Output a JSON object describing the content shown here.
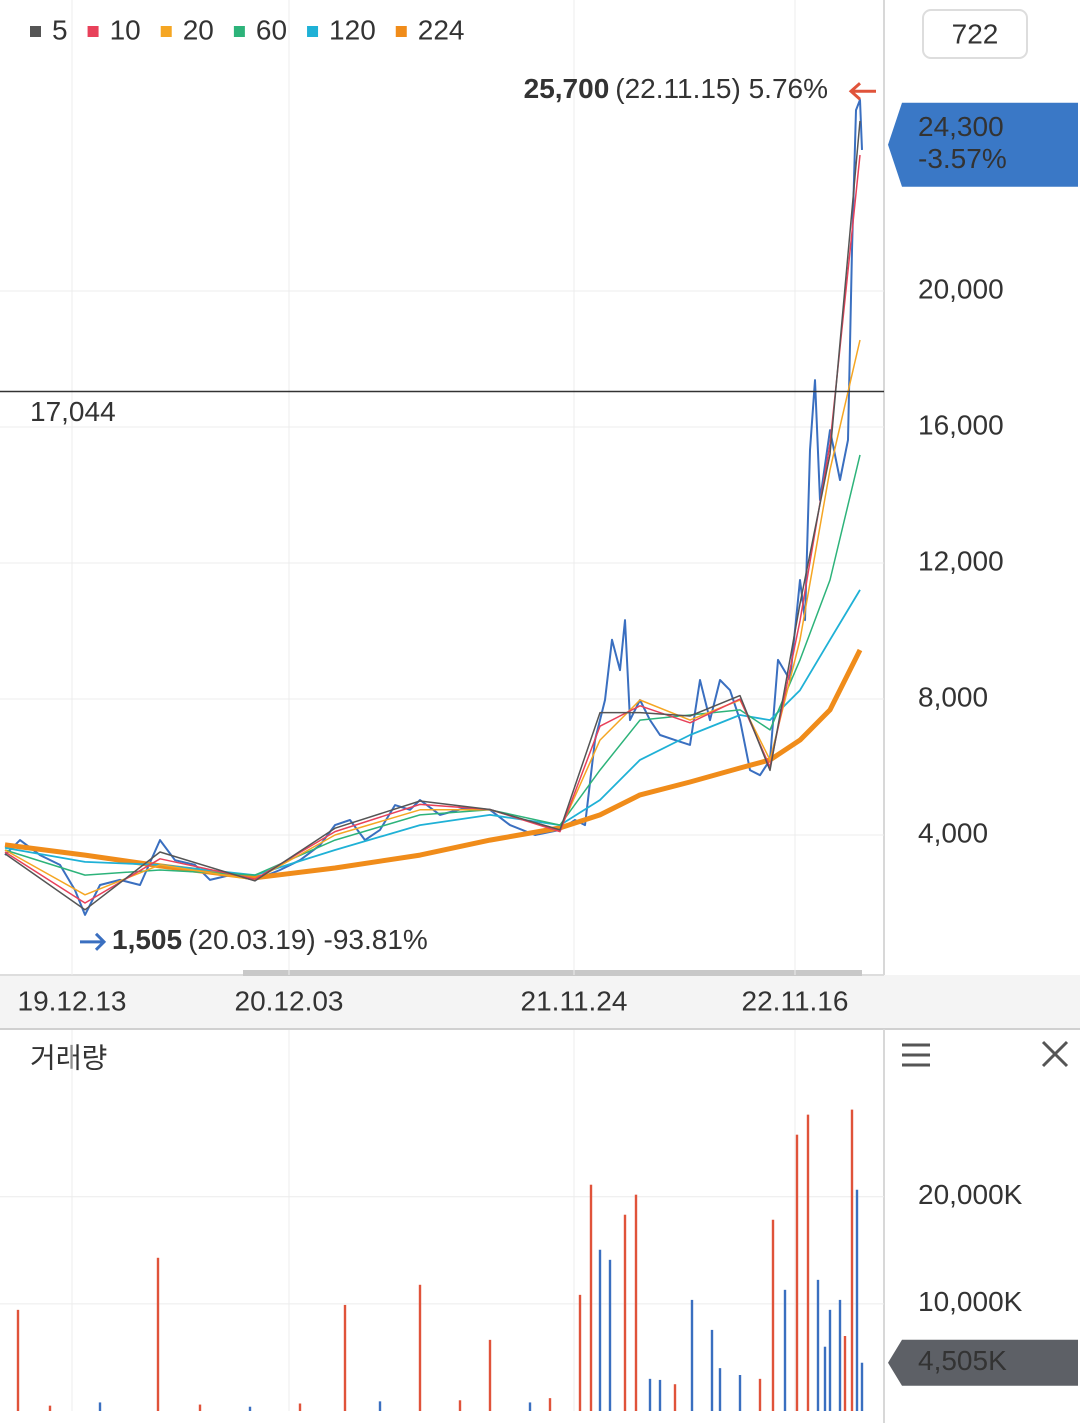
{
  "chart_data": [
    {
      "type": "line",
      "period": "722",
      "xlim": [
        0,
        884
      ],
      "xticks": [
        {
          "value": 72,
          "label": "19.12.13"
        },
        {
          "value": 289,
          "label": "20.12.03"
        },
        {
          "value": 574,
          "label": "21.11.24"
        },
        {
          "value": 795,
          "label": "22.11.16"
        }
      ],
      "ylim": [
        0,
        28500
      ],
      "yticks": [
        {
          "value": 4000,
          "label": "4,000"
        },
        {
          "value": 8000,
          "label": "8,000"
        },
        {
          "value": 12000,
          "label": "12,000"
        },
        {
          "value": 16000,
          "label": "16,000"
        },
        {
          "value": 20000,
          "label": "20,000"
        }
      ],
      "grid": true,
      "price": {
        "color": "#3a6fc0",
        "x": [
          5,
          20,
          40,
          60,
          75,
          85,
          100,
          120,
          140,
          160,
          175,
          195,
          210,
          230,
          255,
          280,
          300,
          320,
          335,
          350,
          365,
          380,
          395,
          410,
          420,
          440,
          465,
          490,
          510,
          535,
          560,
          575,
          585,
          595,
          605,
          612,
          620,
          625,
          630,
          640,
          650,
          660,
          675,
          690,
          700,
          710,
          720,
          730,
          740,
          750,
          760,
          770,
          778,
          790,
          800,
          805,
          810,
          815,
          820,
          830,
          840,
          848,
          852,
          856,
          860,
          862
        ],
        "values": [
          3410,
          3850,
          3410,
          3120,
          2380,
          1650,
          2530,
          2680,
          2530,
          3850,
          3260,
          3120,
          2680,
          2820,
          2680,
          2970,
          3260,
          3700,
          4290,
          4440,
          3850,
          4150,
          4880,
          4740,
          5030,
          4590,
          4790,
          4740,
          4290,
          4000,
          4150,
          4440,
          4290,
          6790,
          7970,
          9740,
          8850,
          10320,
          7380,
          7970,
          7380,
          6940,
          6790,
          6650,
          8560,
          7380,
          8560,
          8260,
          7380,
          5910,
          5760,
          6210,
          9150,
          8560,
          11500,
          10320,
          15320,
          17380,
          13850,
          15910,
          14440,
          15620,
          21210,
          25320,
          25620,
          24150
        ]
      },
      "x": [
        5,
        85,
        160,
        255,
        335,
        420,
        490,
        560,
        600,
        640,
        690,
        740,
        770,
        800,
        830,
        860
      ],
      "series": [
        {
          "name": "5",
          "color": "#555555",
          "values": [
            3450,
            1800,
            3500,
            2650,
            4200,
            5000,
            4750,
            4150,
            7600,
            7600,
            7500,
            8100,
            5900,
            10800,
            15200,
            25000
          ]
        },
        {
          "name": "10",
          "color": "#e8415a",
          "values": [
            3500,
            2000,
            3300,
            2700,
            4100,
            4900,
            4750,
            4100,
            7200,
            7800,
            7300,
            8000,
            6000,
            10300,
            15500,
            24000
          ]
        },
        {
          "name": "20",
          "color": "#f5a623",
          "values": [
            3560,
            2240,
            3120,
            2680,
            4000,
            4740,
            4740,
            4150,
            6790,
            7970,
            7380,
            7970,
            6210,
            9740,
            14740,
            18560
          ]
        },
        {
          "name": "60",
          "color": "#2db37a",
          "values": [
            3560,
            2820,
            2970,
            2820,
            3850,
            4590,
            4740,
            4290,
            5910,
            7380,
            7530,
            7680,
            7090,
            9150,
            11500,
            15180
          ]
        },
        {
          "name": "120",
          "color": "#1fb1d6",
          "values": [
            3620,
            3210,
            3120,
            2820,
            3560,
            4290,
            4590,
            4290,
            5030,
            6210,
            6940,
            7530,
            7380,
            8260,
            9740,
            11210
          ]
        },
        {
          "name": "224",
          "color": "#f08c1a",
          "values": [
            3710,
            3410,
            3090,
            2740,
            3030,
            3410,
            3850,
            4210,
            4590,
            5180,
            5560,
            5970,
            6210,
            6790,
            7680,
            9440
          ]
        }
      ],
      "high": {
        "value": 25700,
        "label": "25,700",
        "detail": "(22.11.15) 5.76%",
        "color": "#e0533a"
      },
      "low": {
        "value": 1505,
        "label": "1,505",
        "detail": "(20.03.19) -93.81%",
        "color": "#3a6fc0"
      },
      "crosshair": {
        "value": 17044,
        "label": "17,044"
      },
      "last": {
        "value": 24300,
        "label": "24,300",
        "change": "-3.57%",
        "color": "#3a78c6"
      }
    },
    {
      "type": "bar",
      "title": "거래량",
      "ylim": [
        0,
        35000
      ],
      "yticks": [
        {
          "value": 10000,
          "label": "10,000K"
        },
        {
          "value": 20000,
          "label": "20,000K"
        }
      ],
      "grid": true,
      "series": [
        {
          "color": "#e0533a",
          "x": [
            18,
            158,
            345,
            420,
            490,
            580,
            591,
            625,
            636,
            773,
            797,
            808,
            852,
            50,
            200,
            300,
            460,
            550,
            675,
            760,
            845
          ],
          "values": [
            9440,
            14300,
            9900,
            11780,
            6640,
            10840,
            21120,
            18320,
            20190,
            17850,
            25790,
            27660,
            28130,
            500,
            600,
            700,
            1000,
            1200,
            2500,
            3000,
            7000
          ]
        },
        {
          "color": "#3a6fc0",
          "x": [
            600,
            610,
            660,
            692,
            712,
            740,
            785,
            818,
            830,
            840,
            857,
            862,
            100,
            250,
            380,
            530,
            650,
            720,
            825
          ],
          "values": [
            15050,
            14110,
            2900,
            10370,
            7570,
            3360,
            11310,
            12240,
            9440,
            10370,
            20650,
            4505,
            800,
            400,
            900,
            800,
            3000,
            4000,
            6000
          ]
        }
      ],
      "last": {
        "value": 4505,
        "label": "4,505K",
        "color": "#5d6066"
      }
    }
  ]
}
